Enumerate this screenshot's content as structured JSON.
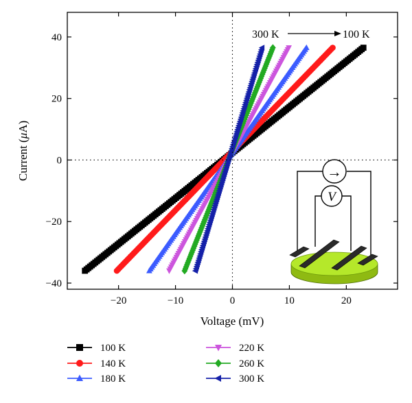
{
  "chart_data": {
    "type": "scatter",
    "xlabel": "Voltage (mV)",
    "ylabel_prefix": "Current (",
    "ylabel_mu": "μ",
    "ylabel_suffix": "A)",
    "xlim": [
      -29,
      29
    ],
    "ylim": [
      -42,
      48
    ],
    "xticks": [
      -20,
      -10,
      0,
      10,
      20
    ],
    "yticks": [
      -40,
      -20,
      0,
      20,
      40
    ],
    "xtick_labels": [
      "−20",
      "−10",
      "0",
      "10",
      "20"
    ],
    "ytick_labels": [
      "−40",
      "−20",
      "0",
      "20",
      "40"
    ],
    "zero_lines": true,
    "grid": false,
    "annotation": {
      "from_label": "300 K",
      "to_label": "100 K"
    },
    "series": [
      {
        "name": "100 K",
        "marker": "square",
        "color": "#000000",
        "x": [
          -25.9,
          23.0
        ],
        "y": [
          -36,
          36.5
        ]
      },
      {
        "name": "140 K",
        "marker": "circle",
        "color": "#ff1a1a",
        "x": [
          -20.3,
          17.6
        ],
        "y": [
          -36,
          36.5
        ]
      },
      {
        "name": "180 K",
        "marker": "triangle-up",
        "color": "#3b5bff",
        "x": [
          -14.6,
          13.0
        ],
        "y": [
          -36,
          36.5
        ]
      },
      {
        "name": "220 K",
        "marker": "triangle-down",
        "color": "#cc55dd",
        "x": [
          -11.1,
          9.9
        ],
        "y": [
          -36,
          36.5
        ]
      },
      {
        "name": "260 K",
        "marker": "diamond",
        "color": "#22aa22",
        "x": [
          -8.4,
          7.1
        ],
        "y": [
          -36,
          36.5
        ]
      },
      {
        "name": "300 K",
        "marker": "triangle-left",
        "color": "#1420a8",
        "x": [
          -6.5,
          5.2
        ],
        "y": [
          -36,
          36.5
        ]
      }
    ],
    "legend_placement": "bottom",
    "inset": {
      "ammeter_symbol": "→",
      "voltmeter_label": "V",
      "sample_color": "#a6d61f"
    }
  }
}
